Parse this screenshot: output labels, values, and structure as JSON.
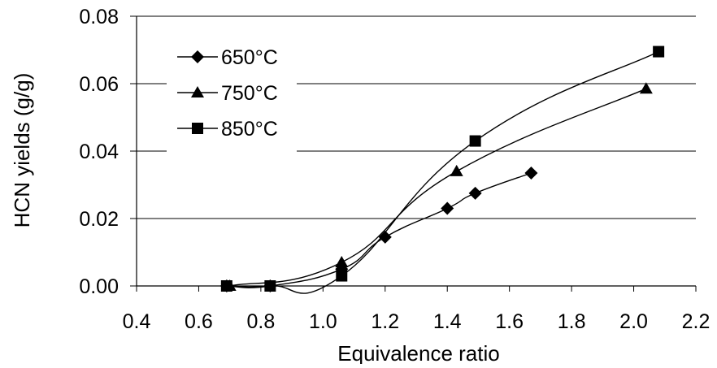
{
  "chart_data": {
    "type": "line",
    "title": "",
    "xlabel": "Equivalence ratio",
    "ylabel": "HCN yields (g/g)",
    "xlim": [
      0.4,
      2.2
    ],
    "ylim": [
      0,
      0.08
    ],
    "x_ticks": [
      "0.4",
      "0.6",
      "0.8",
      "1.0",
      "1.2",
      "1.4",
      "1.6",
      "1.8",
      "2.0",
      "2.2"
    ],
    "y_ticks": [
      "0.00",
      "0.02",
      "0.04",
      "0.06",
      "0.08"
    ],
    "grid": "horizontal",
    "legend_position": "top-left",
    "series": [
      {
        "name": "650°C",
        "marker": "diamond",
        "x": [
          0.69,
          0.83,
          1.06,
          1.2,
          1.4,
          1.49,
          1.67
        ],
        "y": [
          0.0,
          0.0,
          0.005,
          0.0145,
          0.023,
          0.0275,
          0.0335
        ]
      },
      {
        "name": "750°C",
        "marker": "triangle",
        "x": [
          0.7,
          1.06,
          1.43,
          2.04
        ],
        "y": [
          0.0,
          0.007,
          0.034,
          0.0585
        ]
      },
      {
        "name": "850°C",
        "marker": "square",
        "x": [
          0.69,
          0.83,
          1.06,
          1.49,
          2.08
        ],
        "y": [
          0.0,
          0.0,
          0.003,
          0.043,
          0.0695
        ]
      }
    ]
  }
}
